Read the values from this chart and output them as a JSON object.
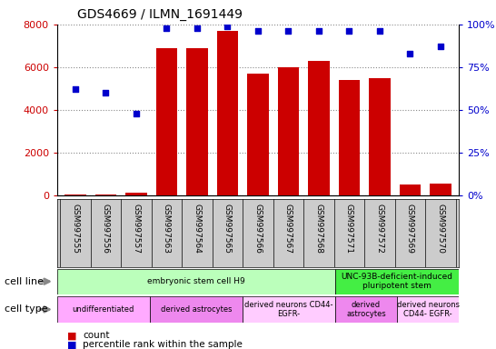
{
  "title": "GDS4669 / ILMN_1691449",
  "samples": [
    "GSM997555",
    "GSM997556",
    "GSM997557",
    "GSM997563",
    "GSM997564",
    "GSM997565",
    "GSM997566",
    "GSM997567",
    "GSM997568",
    "GSM997571",
    "GSM997572",
    "GSM997569",
    "GSM997570"
  ],
  "counts": [
    50,
    30,
    150,
    6900,
    6900,
    7700,
    5700,
    6000,
    6300,
    5400,
    5500,
    500,
    550
  ],
  "percentile": [
    62,
    60,
    48,
    98,
    98,
    99,
    96,
    96,
    96,
    96,
    96,
    83,
    87
  ],
  "ylim_left": [
    0,
    8000
  ],
  "ylim_right": [
    0,
    100
  ],
  "yticks_left": [
    0,
    2000,
    4000,
    6000,
    8000
  ],
  "yticks_right": [
    0,
    25,
    50,
    75,
    100
  ],
  "bar_color": "#cc0000",
  "dot_color": "#0000cc",
  "cell_line_groups": [
    {
      "start": 0,
      "end": 9,
      "text": "embryonic stem cell H9",
      "color": "#bbffbb"
    },
    {
      "start": 9,
      "end": 13,
      "text": "UNC-93B-deficient-induced\npluripotent stem",
      "color": "#44ee44"
    }
  ],
  "cell_type_groups": [
    {
      "start": 0,
      "end": 3,
      "text": "undifferentiated",
      "color": "#ffaaff"
    },
    {
      "start": 3,
      "end": 6,
      "text": "derived astrocytes",
      "color": "#ee88ee"
    },
    {
      "start": 6,
      "end": 9,
      "text": "derived neurons CD44-\nEGFR-",
      "color": "#ffccff"
    },
    {
      "start": 9,
      "end": 11,
      "text": "derived\nastrocytes",
      "color": "#ee88ee"
    },
    {
      "start": 11,
      "end": 13,
      "text": "derived neurons\nCD44- EGFR-",
      "color": "#ffccff"
    }
  ],
  "background_color": "#ffffff",
  "grid_color": "#888888",
  "tick_bg_color": "#cccccc",
  "legend_bar_label": "count",
  "legend_dot_label": "percentile rank within the sample",
  "cell_line_label": "cell line",
  "cell_type_label": "cell type"
}
